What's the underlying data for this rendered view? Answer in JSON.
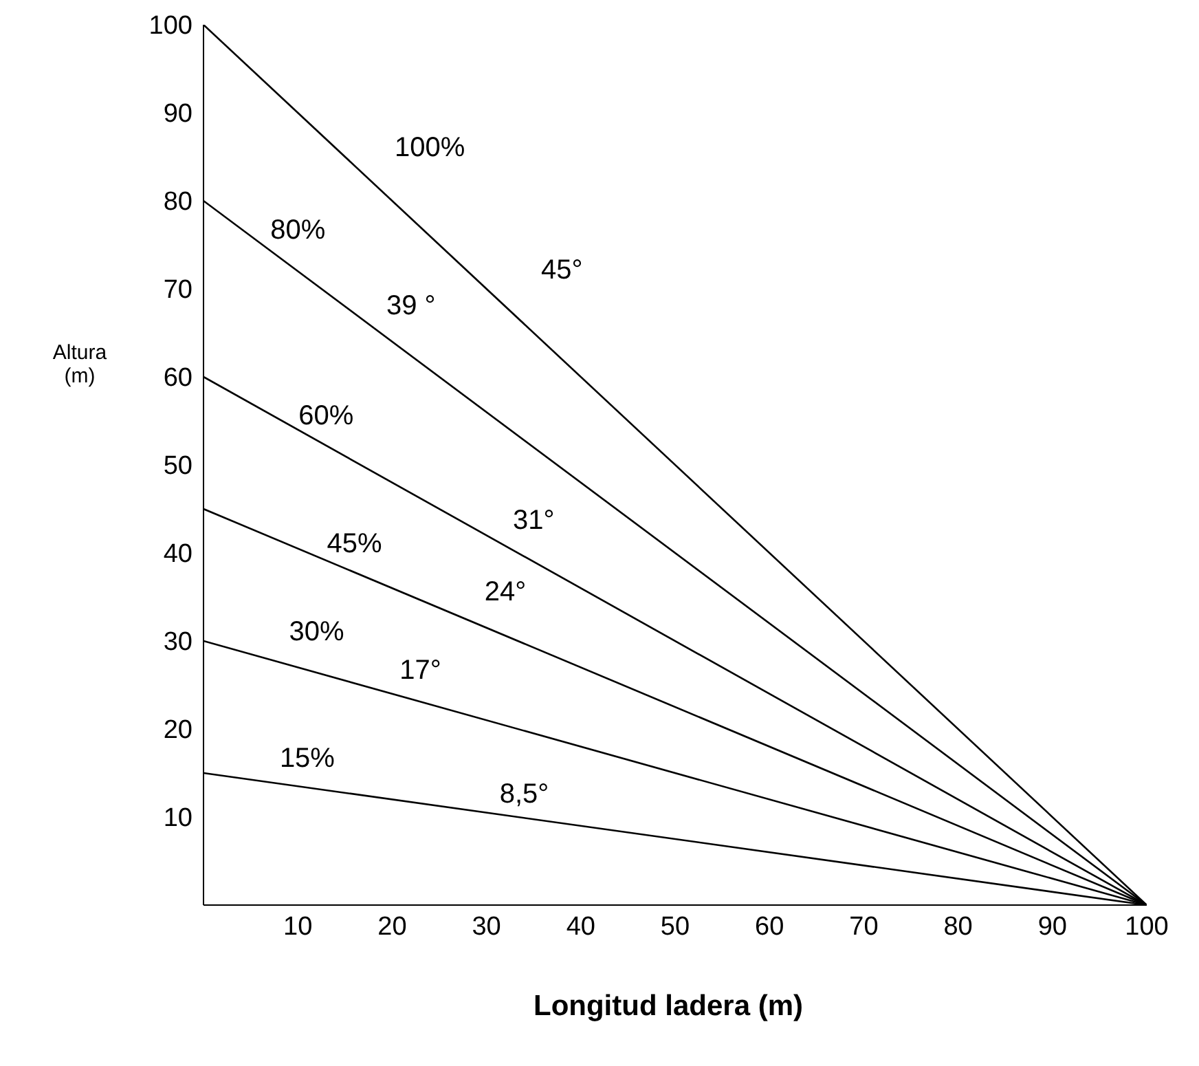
{
  "chart_data": {
    "type": "line",
    "xlabel": "Longitud ladera (m)",
    "ylabel": "Altura (m)",
    "xlim": [
      0,
      100
    ],
    "ylim": [
      0,
      100
    ],
    "xticks": [
      10,
      20,
      30,
      40,
      50,
      60,
      70,
      80,
      90,
      100
    ],
    "yticks": [
      10,
      20,
      30,
      40,
      50,
      60,
      70,
      80,
      90,
      100
    ],
    "x": [
      0,
      100
    ],
    "grid": false,
    "legend": false,
    "marker": "none",
    "line_style": "solid",
    "series": [
      {
        "color": "#000000",
        "values": [
          100,
          0
        ]
      },
      {
        "color": "#000000",
        "values": [
          80,
          0
        ]
      },
      {
        "color": "#000000",
        "values": [
          60,
          0
        ]
      },
      {
        "color": "#000000",
        "values": [
          45,
          0
        ]
      },
      {
        "color": "#000000",
        "values": [
          30,
          0
        ]
      },
      {
        "color": "#000000",
        "values": [
          15,
          0
        ]
      }
    ],
    "annotations": [
      "100%",
      "45°",
      "80%",
      "39 °",
      "60%",
      "31°",
      "45%",
      "24°",
      "30%",
      "17°",
      "15%",
      "8,5°"
    ]
  }
}
